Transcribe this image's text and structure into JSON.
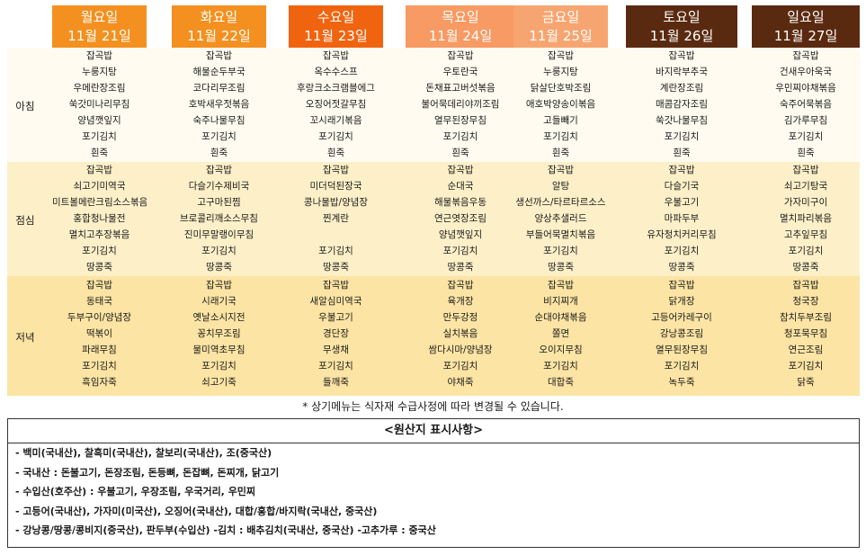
{
  "days": [
    {
      "name": "월요일",
      "date": "11월 21일",
      "color": "#f3901f",
      "breakfast": [
        "잡곡밥",
        "누룽지탕",
        "우메란장조림",
        "쑥갓미나리무침",
        "양념깻잎지",
        "포기김치",
        "흰죽"
      ],
      "lunch": [
        "잡곡밥",
        "쇠고기미역국",
        "미트볼메란크림소스볶음",
        "홍합청나물전",
        "멸치고추장볶음",
        "포기김치",
        "땅콩죽"
      ],
      "dinner": [
        "잡곡밥",
        "동태국",
        "두부구이/양념장",
        "떡볶이",
        "파래무침",
        "포기김치",
        "흑임자죽"
      ]
    },
    {
      "name": "화요일",
      "date": "11월 22일",
      "color": "#f3901f",
      "breakfast": [
        "잡곡밥",
        "해물순두부국",
        "코다리무조림",
        "호박새우젓볶음",
        "숙주나물무침",
        "포기김치",
        "흰죽"
      ],
      "lunch": [
        "잡곡밥",
        "다슬기수제비국",
        "고구마된찜",
        "브로콜리깨소스무침",
        "진미무말랭이무침",
        "포기김치",
        "땅콩죽"
      ],
      "dinner": [
        "잡곡밥",
        "시래기국",
        "옛날소시지전",
        "꽁치무조림",
        "물미역초무침",
        "포기김치",
        "쇠고기죽"
      ]
    },
    {
      "name": "수요일",
      "date": "11월 23일",
      "color": "#f06410",
      "breakfast": [
        "잡곡밥",
        "옥수수스프",
        "후랑크소크램블에그",
        "오징어젓갈무침",
        "꼬시래기볶음",
        "포기김치",
        "흰죽"
      ],
      "lunch": [
        "잡곡밥",
        "미더덕된장국",
        "콩나물밥/양념장",
        "찐계란",
        "",
        "포기김치",
        "땅콩죽"
      ],
      "dinner": [
        "잡곡밥",
        "새알심미역국",
        "우불고기",
        "경단장",
        "무생채",
        "포기김치",
        "들깨죽"
      ]
    },
    {
      "name": "목요일",
      "date": "11월 24일",
      "color": "#f79a63",
      "breakfast": [
        "잡곡밥",
        "우토란국",
        "돈채표고버섯볶음",
        "불어묵데리야끼조림",
        "열무된장무침",
        "포기김치",
        "흰죽"
      ],
      "lunch": [
        "잡곡밥",
        "순대국",
        "해물볶음우동",
        "연근엿장조림",
        "양념깻잎지",
        "포기김치",
        "땅콩죽"
      ],
      "dinner": [
        "잡곡밥",
        "육개장",
        "만두강정",
        "실치볶음",
        "쌈다시마/양념장",
        "포기김치",
        "야채죽"
      ]
    },
    {
      "name": "금요일",
      "date": "11월 25일",
      "color": "#f7a570",
      "breakfast": [
        "잡곡밥",
        "누룽지탕",
        "닭살단호박조림",
        "애호박양송이볶음",
        "고들빼기",
        "포기김치",
        "흰죽"
      ],
      "lunch": [
        "잡곡밥",
        "알탕",
        "생선까스/타르타르소스",
        "양상추샐러드",
        "부들어묵멸치볶음",
        "포기김치",
        "땅콩죽"
      ],
      "dinner": [
        "잡곡밥",
        "비지찌개",
        "순대야채볶음",
        "쫄면",
        "오이지무침",
        "포기김치",
        "대합죽"
      ]
    },
    {
      "name": "토요일",
      "date": "11월 26일",
      "color": "#5a2a10",
      "breakfast": [
        "잡곡밥",
        "바지락부추국",
        "계란장조림",
        "매콤감자조림",
        "쑥갓나물무침",
        "포기김치",
        "흰죽"
      ],
      "lunch": [
        "잡곡밥",
        "다슬기국",
        "우불고기",
        "마파두부",
        "유자청치커리무침",
        "포기김치",
        "땅콩죽"
      ],
      "dinner": [
        "잡곡밥",
        "닭개장",
        "고등어카레구이",
        "강낭콩조림",
        "열무된장무침",
        "포기김치",
        "녹두죽"
      ]
    },
    {
      "name": "일요일",
      "date": "11월 27일",
      "color": "#5a2a10",
      "breakfast": [
        "잡곡밥",
        "건새우아욱국",
        "우민찌야채볶음",
        "숙주어묵볶음",
        "김가루무침",
        "포기김치",
        "흰죽"
      ],
      "lunch": [
        "잡곡밥",
        "쇠고기탕국",
        "가자미구이",
        "멸치파리볶음",
        "고추잎무침",
        "포기김치",
        "땅콩죽"
      ],
      "dinner": [
        "잡곡밥",
        "청국장",
        "참치두부조림",
        "청포묵무침",
        "연근조림",
        "포기김치",
        "닭죽"
      ]
    }
  ],
  "meals": {
    "breakfast": "아침",
    "lunch": "점심",
    "dinner": "저녁"
  },
  "colors": {
    "breakfast": "#fffbf0",
    "lunch": "#fdf0c8",
    "dinner": "#fce4a4"
  },
  "note": "* 상기메뉴는 식자재 수급사정에 따라 변경될 수 있습니다.",
  "origin": {
    "title": "<원산지 표시사항>",
    "lines": [
      "- 백미(국내산), 찰흑미(국내산), 찰보리(국내산), 조(중국산)",
      "- 국내산 : 돈불고기, 돈장조림, 돈등뼈, 돈잡뼈, 돈찌개, 닭고기",
      "- 수입산(호주산) : 우불고기, 우장조림, 우국거리, 우민찌",
      "- 고등어(국내산), 가자미(미국산), 오징어(국내산), 대합/홍합/바지락(국내산, 중국산)",
      "- 강낭콩/땅콩/콩비지(중국산), 판두부(수입산)    -김치 : 배추김치(국내산, 중국산)      -고추가루 : 중국산"
    ]
  }
}
